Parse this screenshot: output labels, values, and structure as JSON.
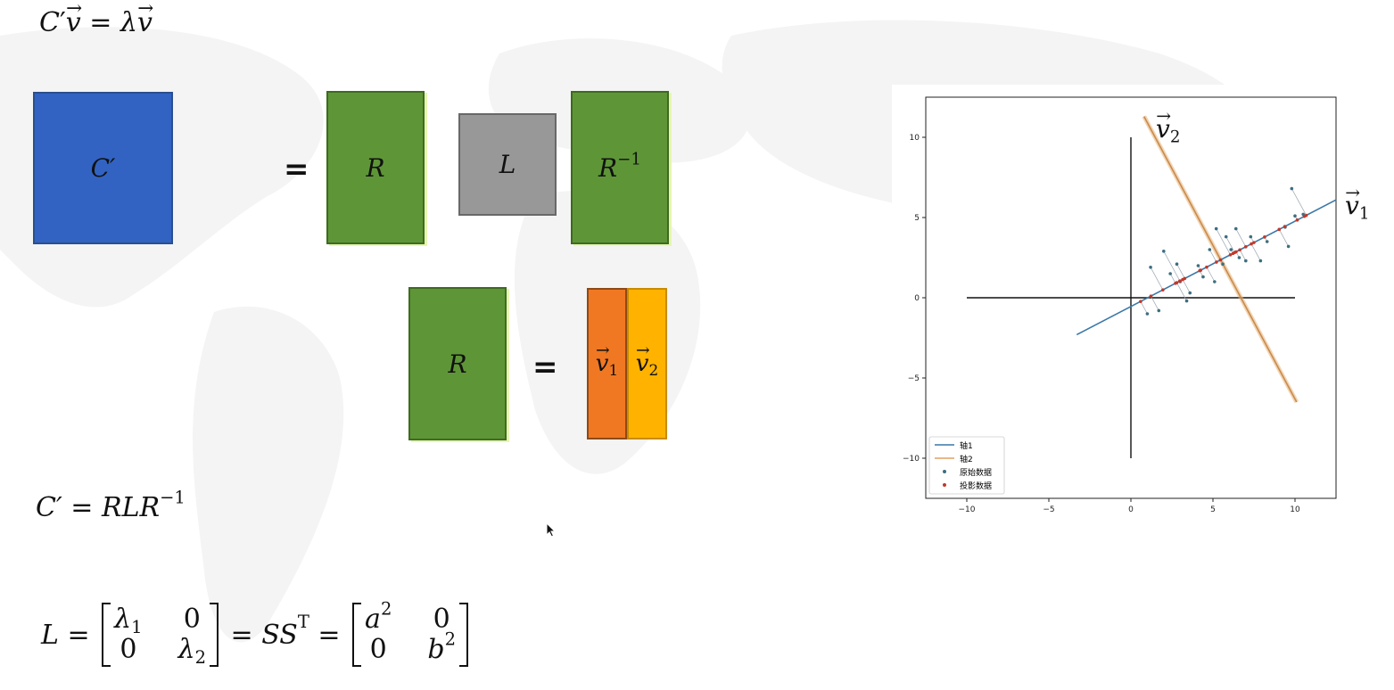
{
  "formulas": {
    "eigen": {
      "C": "C",
      "prime": "′",
      "v1": "v",
      "eq": " = ",
      "lambda": "λ",
      "v2": "v"
    },
    "decomp": {
      "lhs": "C′ = RLR",
      "exp": "−1"
    },
    "L_def": {
      "L": "L = ",
      "m1": [
        "λ",
        "1",
        "0",
        "0",
        "λ",
        "2"
      ],
      "mid": " = SS",
      "T": "T",
      "eq2": " = ",
      "m2": [
        "a",
        "2",
        "0",
        "0",
        "b",
        "2"
      ]
    }
  },
  "blocks": {
    "C_prime": "C′",
    "equals": "=",
    "R_top": "R",
    "L": "L",
    "R_inv": {
      "base": "R",
      "exp": "−1"
    },
    "R_bottom": "R",
    "equals2": "=",
    "v1": {
      "base": "v",
      "sub": "1"
    },
    "v2": {
      "base": "v",
      "sub": "2"
    }
  },
  "colors": {
    "blue": "#3263c2",
    "green": "#5e9637",
    "gray": "#989898",
    "orange": "#f07822",
    "yellow": "#ffb300",
    "axis1": "#3a77a8",
    "axis2": "#e0a060",
    "original_points": "#3d6e80",
    "projected_points": "#c0392b"
  },
  "chart_annotations": {
    "v2": {
      "base": "v",
      "sub": "2"
    },
    "v1": {
      "base": "v",
      "sub": "1"
    }
  },
  "chart_data": {
    "type": "scatter",
    "xlim": [
      -12.5,
      12.5
    ],
    "ylim": [
      -12.5,
      12.5
    ],
    "x_ticks": [
      "−10",
      "−5",
      "0",
      "5",
      "10"
    ],
    "y_ticks": [
      "10",
      "5",
      "0",
      "−5",
      "−10"
    ],
    "x_tick_values": [
      -10,
      -5,
      0,
      5,
      10
    ],
    "y_tick_values": [
      10,
      5,
      0,
      -5,
      -10
    ],
    "legend_position": "lower-left",
    "legend": [
      "轴1",
      "轴2",
      "原始数据",
      "投影数据"
    ],
    "axis1_line": {
      "x": [
        -3.3,
        12.5
      ],
      "y": [
        -2.3,
        6.1
      ]
    },
    "axis2_line": {
      "x": [
        0.8,
        10.1
      ],
      "y": [
        11.3,
        -6.5
      ]
    },
    "original_points": [
      {
        "x": 1.2,
        "y": 1.9
      },
      {
        "x": 2.0,
        "y": 2.9
      },
      {
        "x": 2.8,
        "y": 2.1
      },
      {
        "x": 3.0,
        "y": 1.0
      },
      {
        "x": 3.6,
        "y": 0.3
      },
      {
        "x": 4.1,
        "y": 2.0
      },
      {
        "x": 4.8,
        "y": 3.0
      },
      {
        "x": 5.1,
        "y": 1.0
      },
      {
        "x": 5.2,
        "y": 4.3
      },
      {
        "x": 5.8,
        "y": 3.8
      },
      {
        "x": 6.4,
        "y": 4.3
      },
      {
        "x": 6.6,
        "y": 2.5
      },
      {
        "x": 7.0,
        "y": 2.3
      },
      {
        "x": 7.3,
        "y": 3.8
      },
      {
        "x": 7.9,
        "y": 2.3
      },
      {
        "x": 8.3,
        "y": 3.5
      },
      {
        "x": 9.4,
        "y": 4.4
      },
      {
        "x": 9.6,
        "y": 3.2
      },
      {
        "x": 10.0,
        "y": 5.1
      },
      {
        "x": 9.8,
        "y": 6.8
      },
      {
        "x": 1.0,
        "y": -1.0
      },
      {
        "x": 1.7,
        "y": -0.8
      },
      {
        "x": 2.4,
        "y": 1.5
      },
      {
        "x": 3.4,
        "y": -0.2
      },
      {
        "x": 4.4,
        "y": 1.3
      },
      {
        "x": 5.6,
        "y": 2.1
      },
      {
        "x": 6.1,
        "y": 3.0
      },
      {
        "x": 10.5,
        "y": 5.2
      }
    ]
  }
}
